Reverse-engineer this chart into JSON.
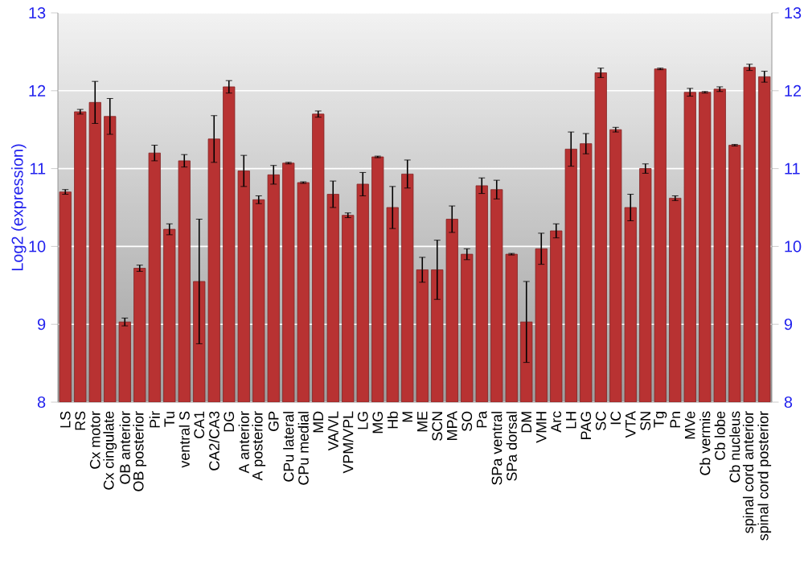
{
  "chart_data": {
    "type": "bar",
    "ylabel": "Log2 (expression)",
    "categories": [
      "LS",
      "RS",
      "Cx motor",
      "Cx cingulate",
      "OB anterior",
      "OB posterior",
      "Pir",
      "Tu",
      "ventral S",
      "CA1",
      "CA2/CA3",
      "DG",
      "A anterior",
      "A posterior",
      "GP",
      "CPu lateral",
      "CPu medial",
      "MD",
      "VA/VL",
      "VPM/VPL",
      "LG",
      "MG",
      "Hb",
      "M",
      "ME",
      "SCN",
      "MPA",
      "SO",
      "Pa",
      "SPa ventral",
      "SPa dorsal",
      "DM",
      "VMH",
      "Arc",
      "LH",
      "PAG",
      "SC",
      "IC",
      "VTA",
      "SN",
      "Tg",
      "Pn",
      "MVe",
      "Cb vermis",
      "Cb lobe",
      "Cb nucleus",
      "spinal cord anterior",
      "spinal cord posterior"
    ],
    "values": [
      10.7,
      11.73,
      11.85,
      11.67,
      9.03,
      9.72,
      11.2,
      10.22,
      11.1,
      9.55,
      11.38,
      12.05,
      10.97,
      10.6,
      10.92,
      11.07,
      10.82,
      11.7,
      10.67,
      10.4,
      10.8,
      11.15,
      10.5,
      10.93,
      9.7,
      9.7,
      10.35,
      9.9,
      10.78,
      10.73,
      9.9,
      9.03,
      9.97,
      10.2,
      11.25,
      11.32,
      12.23,
      11.5,
      10.5,
      11.0,
      12.28,
      10.62,
      11.98,
      11.98,
      12.02,
      11.3,
      12.3,
      12.18
    ],
    "errors": [
      0.03,
      0.03,
      0.27,
      0.23,
      0.05,
      0.04,
      0.1,
      0.07,
      0.08,
      0.8,
      0.3,
      0.08,
      0.2,
      0.05,
      0.12,
      0.01,
      0.01,
      0.04,
      0.17,
      0.03,
      0.15,
      0.01,
      0.27,
      0.18,
      0.16,
      0.38,
      0.17,
      0.07,
      0.1,
      0.12,
      0.01,
      0.52,
      0.2,
      0.09,
      0.22,
      0.13,
      0.06,
      0.03,
      0.17,
      0.06,
      0.01,
      0.03,
      0.05,
      0.01,
      0.03,
      0.01,
      0.04,
      0.07
    ],
    "color": "#b83232",
    "ylim": [
      8,
      13
    ],
    "yticks": [
      8,
      9,
      10,
      11,
      12,
      13
    ],
    "y2lim": [
      8,
      13
    ],
    "y2ticks": [
      8,
      9,
      10,
      11,
      12,
      13
    ],
    "grid": "y"
  }
}
